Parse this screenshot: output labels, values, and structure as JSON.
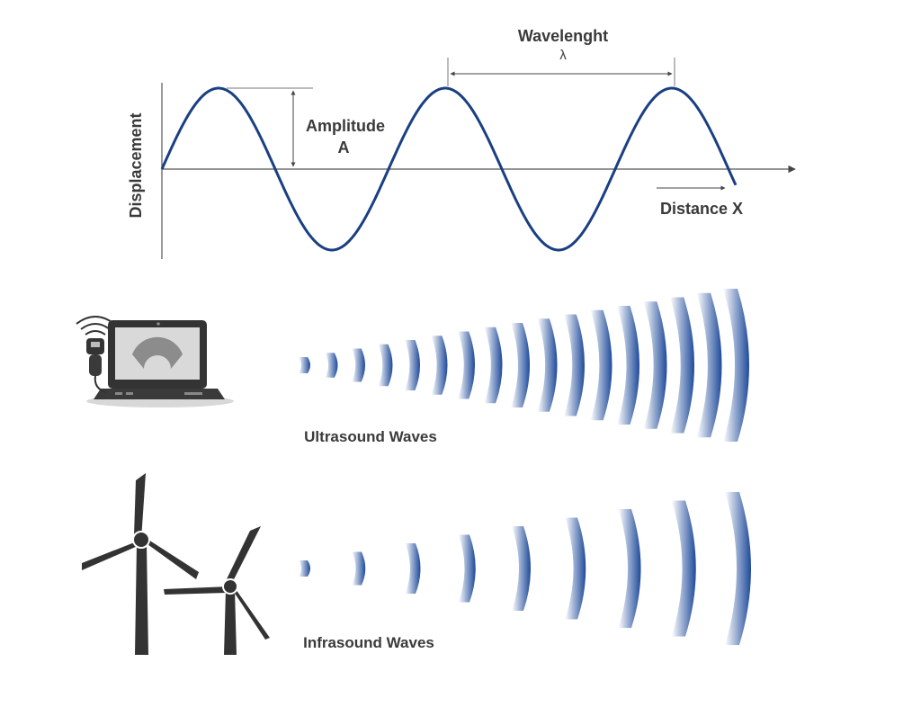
{
  "wave_diagram": {
    "y_axis_label": "Displacement",
    "x_axis_label": "Distance X",
    "amplitude_label": "Amplitude",
    "amplitude_symbol": "A",
    "wavelength_label": "Wavelenght",
    "wavelength_symbol": "λ"
  },
  "ultrasound": {
    "label": "Ultrasound Waves",
    "icon": "ultrasound-machine-icon",
    "band_count": 17
  },
  "infrasound": {
    "label": "Infrasound Waves",
    "icon": "wind-turbine-icon",
    "band_count": 9
  },
  "colors": {
    "wave": "#1a3f82",
    "axis": "#444444",
    "text": "#3a3a3a",
    "band": "#1e4a9a",
    "icon_dark": "#333333",
    "icon_light": "#9a9a9a"
  }
}
